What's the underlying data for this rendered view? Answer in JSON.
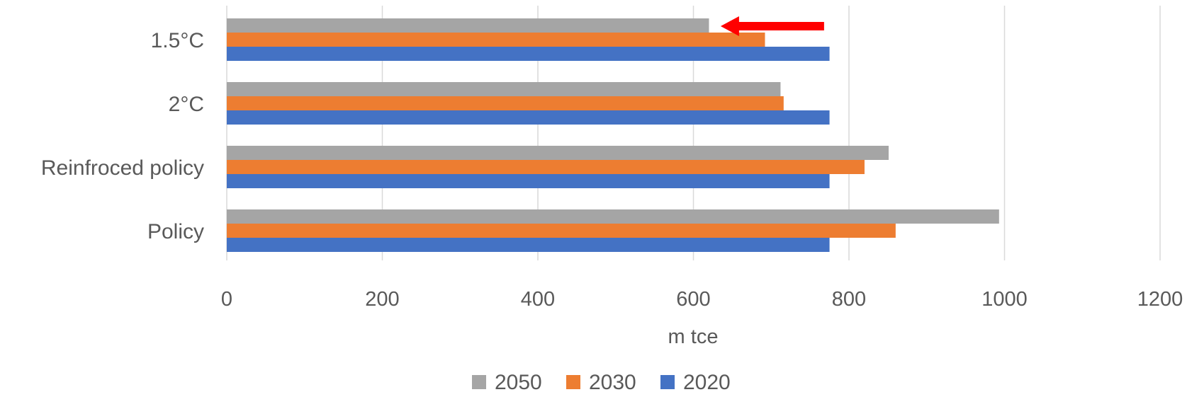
{
  "chart_data": {
    "type": "bar",
    "orientation": "horizontal",
    "categories": [
      "1.5°C",
      "2°C",
      "Reinfroced policy",
      "Policy"
    ],
    "series": [
      {
        "name": "2050",
        "color": "#A5A5A5",
        "values": [
          620,
          712,
          851,
          993
        ]
      },
      {
        "name": "2030",
        "color": "#ED7D31",
        "values": [
          692,
          716,
          820,
          860
        ]
      },
      {
        "name": "2020",
        "color": "#4472C4",
        "values": [
          775,
          775,
          775,
          775
        ]
      }
    ],
    "xlabel": "m tce",
    "ylabel": "",
    "title": "",
    "xlim": [
      0,
      1200
    ],
    "xticks": [
      "0",
      "200",
      "400",
      "600",
      "800",
      "1000",
      "1200"
    ],
    "grid": "vertical",
    "legend": "bottom",
    "annotation": {
      "type": "arrow",
      "color": "#FF0000",
      "category": "1.5°C",
      "series": "2050",
      "from_value": 768,
      "to_value": 635
    }
  }
}
